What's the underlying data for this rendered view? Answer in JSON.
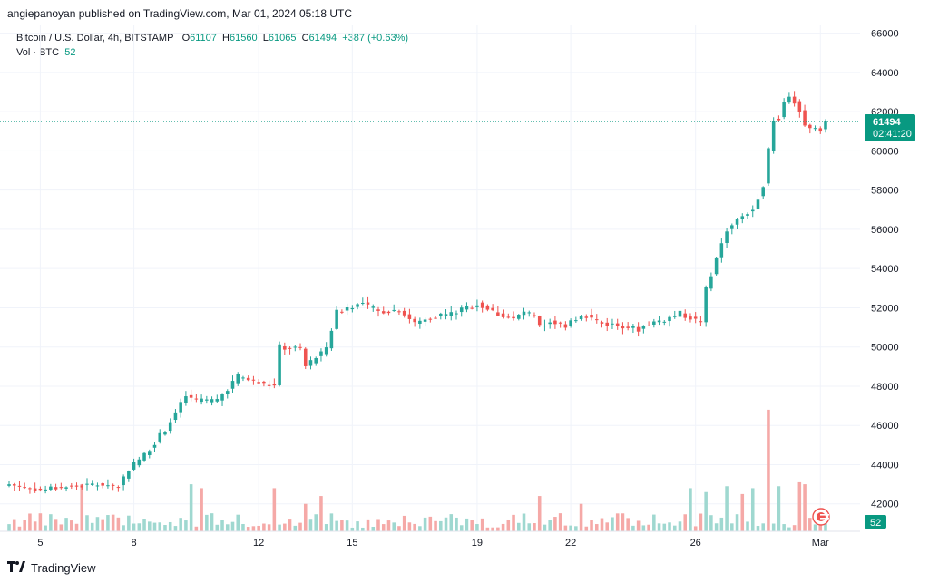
{
  "header": {
    "publish_line": "angiepanoyan published on TradingView.com, Mar 01, 2024 05:18 UTC"
  },
  "legend": {
    "symbol": "Bitcoin / U.S. Dollar, 4h, BITSTAMP",
    "open_label": "O",
    "open": "61107",
    "high_label": "H",
    "high": "61560",
    "low_label": "L",
    "low": "61065",
    "close_label": "C",
    "close": "61494",
    "change": "+387 (+0.63%)",
    "vol_label": "Vol · BTC",
    "vol_value": "52"
  },
  "price_badge": {
    "price": "61494",
    "countdown": "02:41:20"
  },
  "volume_badge": "52",
  "footer": {
    "brand": "TradingView"
  },
  "colors": {
    "up": "#26a69a",
    "down": "#ef5350",
    "up_vol": "#9fd8d0",
    "down_vol": "#f5a9a7",
    "grid": "#f0f3fa",
    "current_line": "#089981"
  },
  "chart_data": {
    "type": "candlestick",
    "interval": "4h",
    "y_axis": {
      "min": 40600,
      "max": 66400,
      "ticks": [
        42000,
        44000,
        46000,
        48000,
        50000,
        52000,
        54000,
        56000,
        58000,
        60000,
        62000,
        64000,
        66000
      ],
      "position": "right"
    },
    "x_axis": {
      "ticks": [
        {
          "label": "5",
          "index": 6
        },
        {
          "label": "8",
          "index": 24
        },
        {
          "label": "12",
          "index": 48
        },
        {
          "label": "15",
          "index": 66
        },
        {
          "label": "19",
          "index": 90
        },
        {
          "label": "22",
          "index": 108
        },
        {
          "label": "26",
          "index": 132
        },
        {
          "label": "Mar",
          "index": 156
        }
      ]
    },
    "current_price": 61494,
    "candle_count": 158,
    "ohlc_keypoints": [
      [
        0,
        43000
      ],
      [
        6,
        42700
      ],
      [
        8,
        42800
      ],
      [
        13,
        42900
      ],
      [
        18,
        43000
      ],
      [
        21,
        42900
      ],
      [
        23,
        43800
      ],
      [
        26,
        44500
      ],
      [
        30,
        45800
      ],
      [
        34,
        47500
      ],
      [
        36,
        47200
      ],
      [
        40,
        47300
      ],
      [
        43,
        48200
      ],
      [
        44,
        48500
      ],
      [
        49,
        48100
      ],
      [
        51,
        48000
      ],
      [
        52,
        50000
      ],
      [
        56,
        49900
      ],
      [
        57,
        49000
      ],
      [
        60,
        49700
      ],
      [
        61,
        50000
      ],
      [
        63,
        51800
      ],
      [
        66,
        52100
      ],
      [
        68,
        52200
      ],
      [
        71,
        51800
      ],
      [
        75,
        51900
      ],
      [
        78,
        51200
      ],
      [
        82,
        51600
      ],
      [
        85,
        51700
      ],
      [
        90,
        52200
      ],
      [
        93,
        51800
      ],
      [
        97,
        51400
      ],
      [
        99,
        51800
      ],
      [
        101,
        51500
      ],
      [
        102,
        51000
      ],
      [
        104,
        51300
      ],
      [
        107,
        51100
      ],
      [
        108,
        51400
      ],
      [
        111,
        51600
      ],
      [
        114,
        51200
      ],
      [
        118,
        51100
      ],
      [
        121,
        50900
      ],
      [
        123,
        51200
      ],
      [
        126,
        51400
      ],
      [
        129,
        51700
      ],
      [
        131,
        51500
      ],
      [
        133,
        51200
      ],
      [
        134,
        53000
      ],
      [
        136,
        54500
      ],
      [
        138,
        56000
      ],
      [
        141,
        56700
      ],
      [
        143,
        57000
      ],
      [
        145,
        58300
      ],
      [
        146,
        60000
      ],
      [
        147,
        61600
      ],
      [
        148,
        61700
      ],
      [
        149,
        62500
      ],
      [
        150,
        62800
      ],
      [
        151,
        62500
      ],
      [
        152,
        62000
      ],
      [
        153,
        61300
      ],
      [
        154,
        61100
      ],
      [
        155,
        61100
      ],
      [
        156,
        61107
      ],
      [
        157,
        61494
      ]
    ],
    "volume_max": 46800,
    "volume_spikes": [
      {
        "index": 14,
        "value": 43000,
        "up": false
      },
      {
        "index": 35,
        "value": 43000,
        "up": true
      },
      {
        "index": 37,
        "value": 42800,
        "up": false
      },
      {
        "index": 51,
        "value": 42800,
        "up": false
      },
      {
        "index": 57,
        "value": 42000,
        "up": false
      },
      {
        "index": 60,
        "value": 42400,
        "up": false
      },
      {
        "index": 102,
        "value": 42400,
        "up": false
      },
      {
        "index": 110,
        "value": 42000,
        "up": false
      },
      {
        "index": 131,
        "value": 42800,
        "up": true
      },
      {
        "index": 134,
        "value": 42600,
        "up": true
      },
      {
        "index": 138,
        "value": 42900,
        "up": true
      },
      {
        "index": 141,
        "value": 42500,
        "up": false
      },
      {
        "index": 143,
        "value": 42800,
        "up": true
      },
      {
        "index": 146,
        "value": 46800,
        "up": false
      },
      {
        "index": 148,
        "value": 42900,
        "up": true
      },
      {
        "index": 152,
        "value": 43100,
        "up": false
      },
      {
        "index": 153,
        "value": 43000,
        "up": false
      }
    ]
  }
}
